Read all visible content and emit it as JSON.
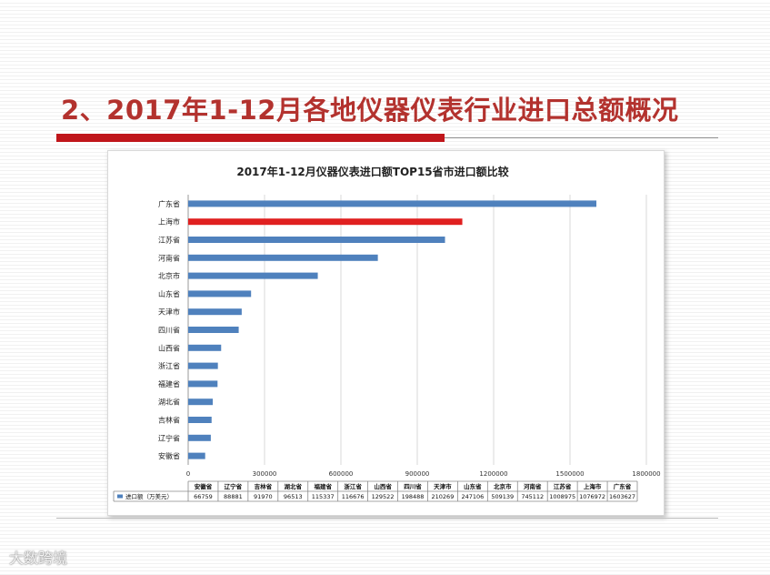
{
  "slide": {
    "title": "2、2017年1-12月各地仪器仪表行业进口总额概况",
    "watermark": "大数跨境"
  },
  "chart_data": {
    "type": "bar",
    "orientation": "horizontal",
    "title": "2017年1-12月仪器仪表进口额TOP15省市进口额比较",
    "categories": [
      "安徽省",
      "辽宁省",
      "吉林省",
      "湖北省",
      "福建省",
      "浙江省",
      "山西省",
      "四川省",
      "天津市",
      "山东省",
      "北京市",
      "河南省",
      "江苏省",
      "上海市",
      "广东省"
    ],
    "series": [
      {
        "name": "进口额（万美元）",
        "values": [
          66759,
          88881,
          91970,
          96513,
          115337,
          116676,
          129522,
          198488,
          210269,
          247106,
          509139,
          745112,
          1008975,
          1076972,
          1603627
        ],
        "value_labels": [
          "66759",
          "88881",
          "91970",
          "96513",
          "115337",
          "116676",
          "129522",
          "198488",
          "210269",
          "247106",
          "509139",
          "745112",
          "1008975",
          "1076972",
          "1603627"
        ]
      }
    ],
    "highlight_category": "上海市",
    "xlim": [
      0,
      1800000
    ],
    "xticks": [
      0,
      300000,
      600000,
      900000,
      1200000,
      1500000,
      1800000
    ],
    "xtick_labels": [
      "0",
      "300000",
      "600000",
      "900000",
      "1200000",
      "1500000",
      "1800000"
    ],
    "gridlines": true,
    "legend": "data-table-below",
    "colors": {
      "bar": "#4f81bd",
      "highlight": "#e02020",
      "grid": "#d9d9d9"
    }
  }
}
